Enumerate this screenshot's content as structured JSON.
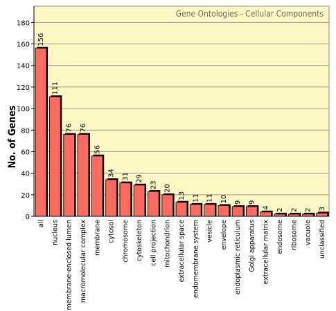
{
  "chart_data": {
    "type": "bar",
    "title": "Gene Ontologies - Cellular Components",
    "xlabel": "",
    "ylabel": "No. of Genes",
    "ylim": [
      0,
      195
    ],
    "yticks": [
      0,
      20,
      40,
      60,
      80,
      100,
      120,
      140,
      160,
      180
    ],
    "grid": true,
    "categories": [
      "all",
      "nucleus",
      "membrane-enclosed lumen",
      "macromolecular complex",
      "membrane",
      "cytosol",
      "chromosome",
      "cytoskeleton",
      "cell projection",
      "mitochondrion",
      "extracellular space",
      "endomembrane system",
      "vesicle",
      "envelope",
      "endoplasmic reticulum",
      "Golgi apparatus",
      "extracellular matrix",
      "endosome",
      "ribosome",
      "vacuole",
      "unclassified"
    ],
    "values": [
      156,
      111,
      76,
      76,
      56,
      34,
      31,
      29,
      23,
      20,
      13,
      11,
      11,
      10,
      9,
      9,
      4,
      2,
      2,
      2,
      3
    ],
    "colors": {
      "background": "#fdf8c4",
      "bar": "#fd6a60",
      "bar_edge": "#111111",
      "bar_shadow": "#000000",
      "grid": "#9a9a9a",
      "title": "#6b6b6b"
    }
  }
}
